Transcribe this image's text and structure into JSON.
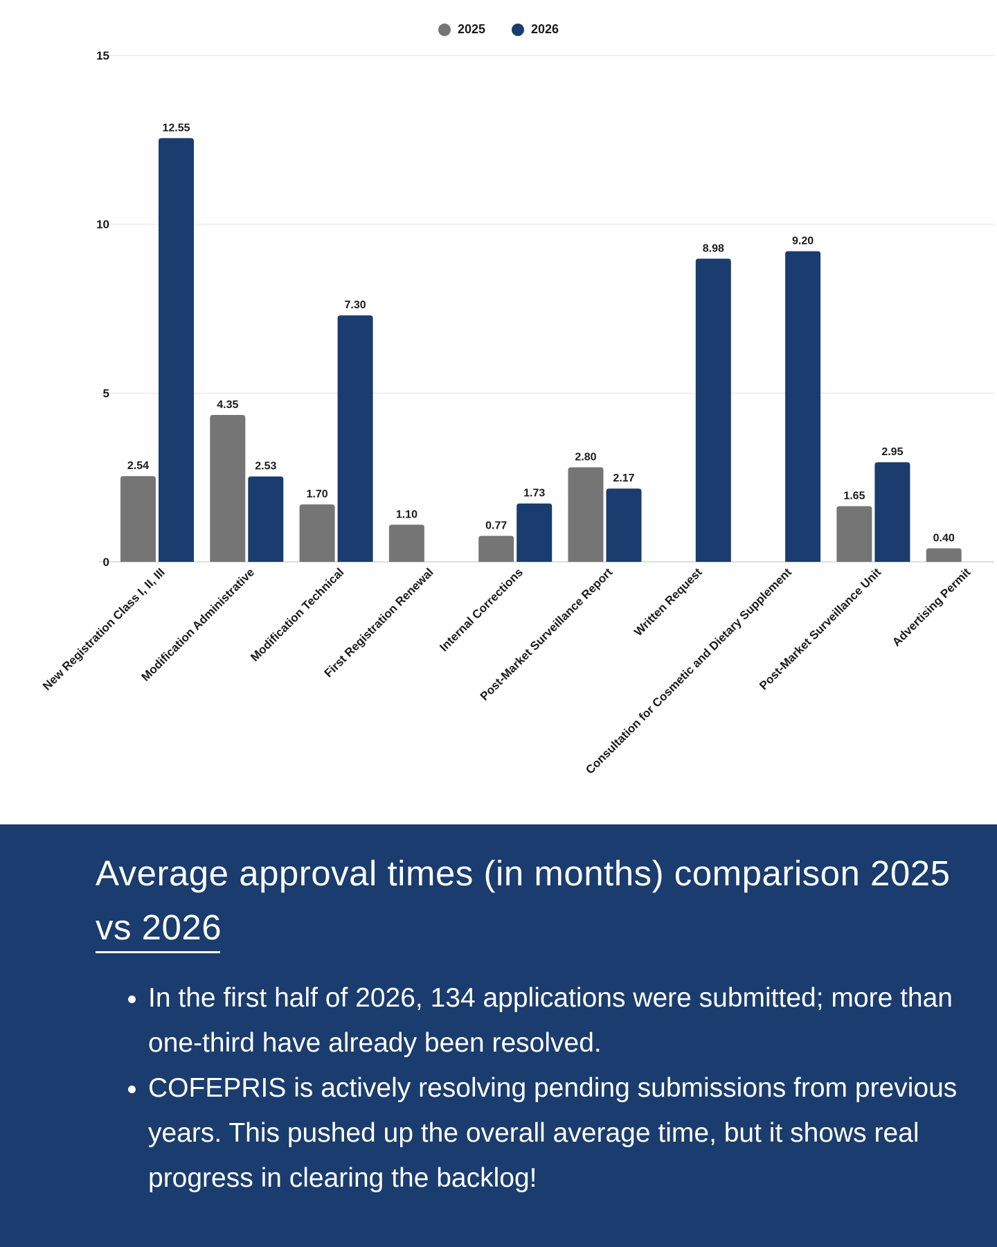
{
  "legend": [
    {
      "label": "2025",
      "color": "#757575"
    },
    {
      "label": "2026",
      "color": "#1a3c6e"
    }
  ],
  "chart_data": {
    "type": "bar",
    "categories": [
      "New Registration Class I, II, III",
      "Modification Administrative",
      "Modification Technical",
      "First Registration Renewal",
      "Internal Corrections",
      "Post-Market Surveillance Report",
      "Written Request",
      "Consultation for Cosmetic and Dietary Supplement",
      "Post-Market Surveillance Unit",
      "Advertising Permit"
    ],
    "series": [
      {
        "name": "2025",
        "color": "#757575",
        "values": [
          2.54,
          4.35,
          1.7,
          1.1,
          0.77,
          2.8,
          null,
          null,
          1.65,
          0.4
        ]
      },
      {
        "name": "2026",
        "color": "#1a3c6e",
        "values": [
          12.55,
          2.53,
          7.3,
          null,
          1.73,
          2.17,
          8.98,
          9.2,
          2.95,
          null
        ]
      }
    ],
    "ylim": [
      0,
      15
    ],
    "yticks": [
      0,
      5,
      10,
      15
    ],
    "grid": true,
    "legend_position": "top-center",
    "value_labels": true
  },
  "panel": {
    "title": "Average approval times (in months) comparison 2025 vs 2026",
    "bullets": [
      "In the first half of 2026, 134 applications were submitted; more than one-third have already been resolved.",
      "COFEPRIS is actively resolving pending submissions from previous years.  This pushed up the overall average time, but it shows real progress in clearing the backlog!"
    ]
  }
}
